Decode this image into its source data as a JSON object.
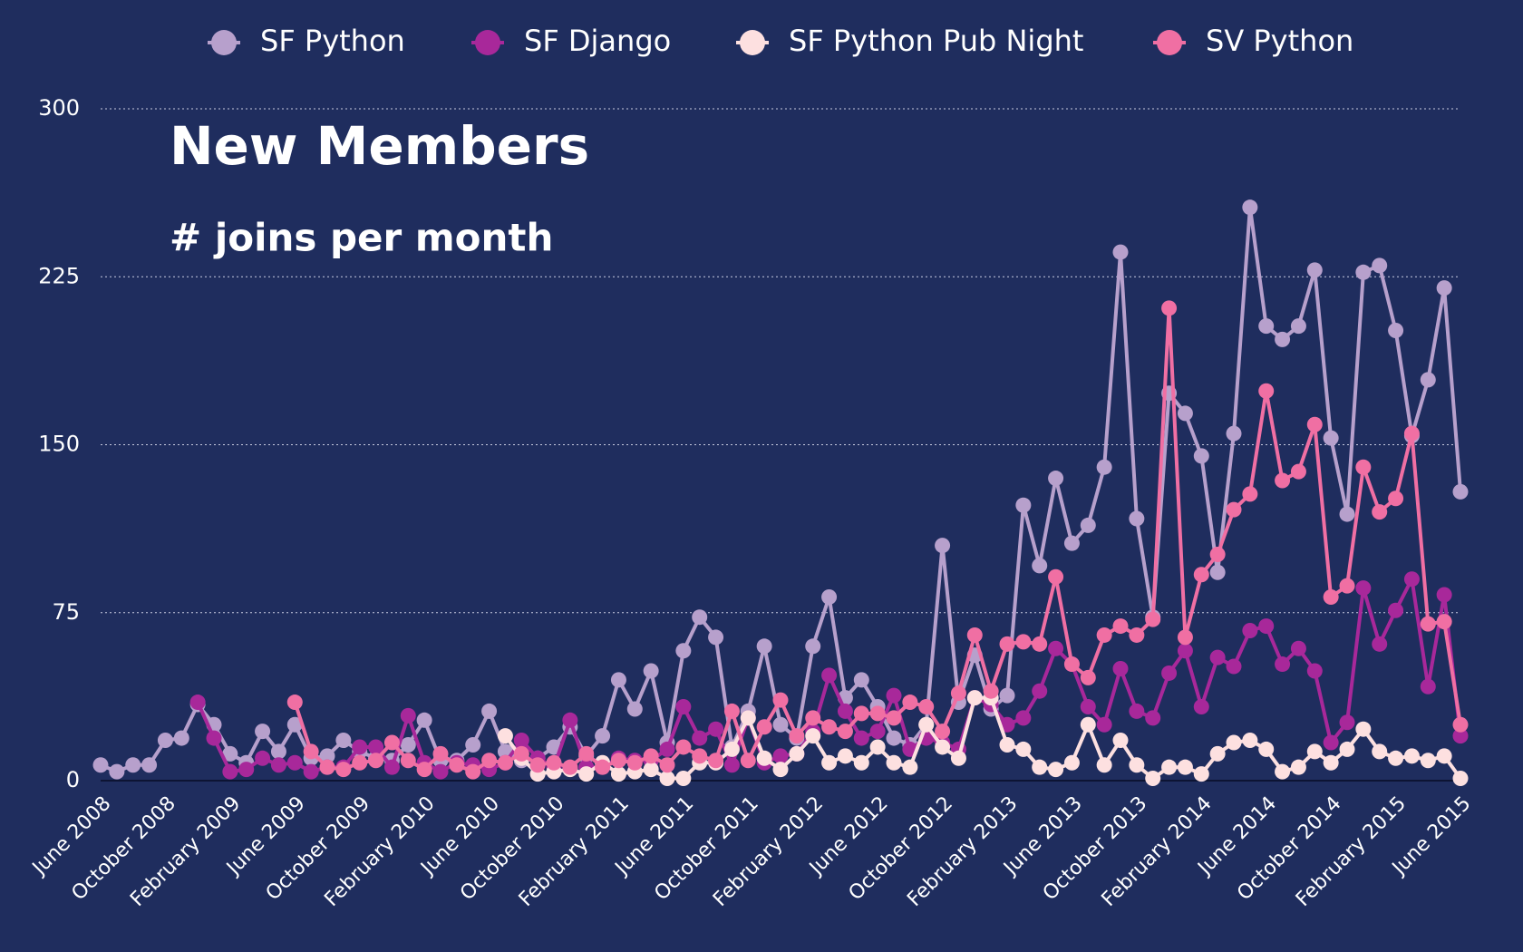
{
  "chart_data": {
    "type": "line",
    "title": "New Members",
    "subtitle": "# joins per month",
    "categories": [
      "June 2008",
      null,
      null,
      null,
      "October 2008",
      null,
      null,
      null,
      "February 2009",
      null,
      null,
      null,
      "June 2009",
      null,
      null,
      null,
      "October 2009",
      null,
      null,
      null,
      "February 2010",
      null,
      null,
      null,
      "June 2010",
      null,
      null,
      null,
      "October 2010",
      null,
      null,
      null,
      "February 2011",
      null,
      null,
      null,
      "June 2011",
      null,
      null,
      null,
      "October 2011",
      null,
      null,
      null,
      "February 2012",
      null,
      null,
      null,
      "June 2012",
      null,
      null,
      null,
      "October 2012",
      null,
      null,
      null,
      "February 2013",
      null,
      null,
      null,
      "June 2013",
      null,
      null,
      null,
      "October 2013",
      null,
      null,
      null,
      "February 2014",
      null,
      null,
      null,
      "June 2014",
      null,
      null,
      null,
      "October 2014",
      null,
      null,
      null,
      "February 2015",
      null,
      null,
      null,
      "June 2015"
    ],
    "series": [
      {
        "name": "SF Python",
        "color": "#b7a0cc",
        "values": [
          7,
          4,
          7,
          7,
          18,
          19,
          34,
          25,
          12,
          8,
          22,
          13,
          25,
          10,
          11,
          18,
          13,
          10,
          9,
          16,
          27,
          9,
          9,
          16,
          31,
          13,
          9,
          10,
          15,
          24,
          11,
          20,
          45,
          32,
          49,
          17,
          58,
          73,
          64,
          15,
          31,
          60,
          25,
          19,
          60,
          82,
          37,
          45,
          33,
          19,
          16,
          25,
          105,
          35,
          56,
          32,
          38,
          123,
          96,
          135,
          106,
          114,
          140,
          236,
          117,
          73,
          173,
          164,
          145,
          93,
          155,
          256,
          203,
          197,
          203,
          228,
          153,
          119,
          227,
          230,
          201,
          154,
          179,
          220,
          129
        ]
      },
      {
        "name": "SF Django",
        "color": "#a8289a",
        "values": [
          null,
          null,
          null,
          null,
          null,
          null,
          35,
          19,
          4,
          5,
          10,
          7,
          8,
          4,
          6,
          6,
          15,
          15,
          6,
          29,
          8,
          4,
          8,
          7,
          5,
          8,
          18,
          10,
          6,
          27,
          6,
          6,
          10,
          9,
          9,
          14,
          33,
          19,
          23,
          7,
          28,
          8,
          11,
          12,
          22,
          47,
          31,
          19,
          22,
          38,
          14,
          19,
          17,
          14,
          37,
          34,
          25,
          28,
          40,
          59,
          52,
          33,
          25,
          50,
          31,
          28,
          48,
          58,
          33,
          55,
          51,
          67,
          69,
          52,
          59,
          49,
          17,
          26,
          86,
          61,
          76,
          90,
          42,
          83,
          20
        ]
      },
      {
        "name": "SF Python Pub Night",
        "color": "#fde0e0",
        "values": [
          null,
          null,
          null,
          null,
          null,
          null,
          null,
          null,
          null,
          null,
          null,
          null,
          null,
          null,
          null,
          null,
          null,
          null,
          null,
          null,
          null,
          null,
          null,
          null,
          null,
          20,
          10,
          3,
          4,
          5,
          3,
          8,
          3,
          4,
          5,
          1,
          1,
          8,
          8,
          14,
          28,
          10,
          5,
          12,
          20,
          8,
          11,
          8,
          15,
          8,
          6,
          25,
          15,
          10,
          37,
          37,
          16,
          14,
          6,
          5,
          8,
          25,
          7,
          18,
          7,
          1,
          6,
          6,
          3,
          12,
          17,
          18,
          14,
          4,
          6,
          13,
          8,
          14,
          23,
          13,
          10,
          11,
          9,
          11,
          1
        ]
      },
      {
        "name": "SV Python",
        "color": "#f06fa3",
        "values": [
          null,
          null,
          null,
          null,
          null,
          null,
          null,
          null,
          null,
          null,
          null,
          null,
          35,
          13,
          6,
          5,
          8,
          9,
          17,
          9,
          5,
          12,
          7,
          4,
          9,
          8,
          12,
          7,
          8,
          6,
          12,
          6,
          9,
          8,
          11,
          7,
          15,
          11,
          9,
          31,
          9,
          24,
          36,
          20,
          28,
          24,
          22,
          30,
          30,
          28,
          35,
          33,
          22,
          39,
          65,
          40,
          61,
          62,
          61,
          91,
          52,
          46,
          65,
          69,
          65,
          72,
          211,
          64,
          92,
          101,
          121,
          128,
          174,
          134,
          138,
          159,
          82,
          87,
          140,
          120,
          126,
          155,
          70,
          71,
          25
        ]
      }
    ],
    "ylim": [
      0,
      300
    ],
    "yticks": [
      0,
      75,
      150,
      225,
      300
    ],
    "grid": true,
    "legend": "top"
  }
}
